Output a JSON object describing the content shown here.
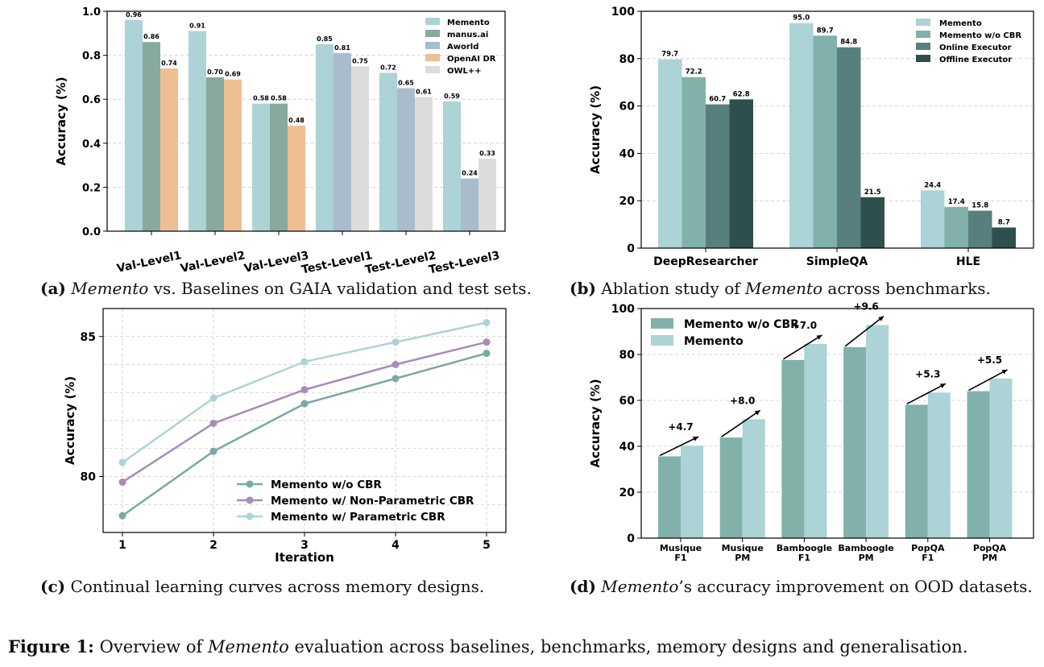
{
  "colors": {
    "memento": "#acd3d5",
    "manus": "#88a99e",
    "aworld": "#a9bccd",
    "openai": "#edbf93",
    "owl": "#dcdcdc",
    "wocbr": "#82b0ab",
    "online": "#577f7d",
    "offline": "#2f4f4c",
    "line_wocbr": "#7aa9a4",
    "line_nonparam": "#a98ab8",
    "line_param": "#acd3d5",
    "grid": "#c9c9c9"
  },
  "chart_data": [
    {
      "id": "a",
      "type": "bar",
      "title": "",
      "xlabel": "",
      "ylabel": "Accuracy (%)",
      "ylim": [
        0,
        1.0
      ],
      "yticks": [
        "0.0",
        "0.2",
        "0.4",
        "0.6",
        "0.8",
        "1.0"
      ],
      "grid": true,
      "legend_position": "top-right",
      "categories": [
        "Val-Level1",
        "Val-Level2",
        "Val-Level3",
        "Test-Level1",
        "Test-Level2",
        "Test-Level3"
      ],
      "series": [
        {
          "name": "Memento",
          "color": "#acd3d5",
          "values": [
            0.96,
            0.91,
            0.58,
            0.85,
            0.72,
            0.59
          ]
        },
        {
          "name": "manus.ai",
          "color": "#88a99e",
          "values": [
            0.86,
            0.7,
            0.58,
            null,
            null,
            null
          ]
        },
        {
          "name": "Aworld",
          "color": "#a9bccd",
          "values": [
            null,
            null,
            null,
            0.81,
            0.65,
            0.24
          ]
        },
        {
          "name": "OpenAI DR",
          "color": "#edbf93",
          "values": [
            0.74,
            0.69,
            0.48,
            null,
            null,
            null
          ]
        },
        {
          "name": "OWL++",
          "color": "#dcdcdc",
          "values": [
            null,
            null,
            null,
            0.75,
            0.61,
            0.33
          ]
        }
      ]
    },
    {
      "id": "b",
      "type": "bar",
      "title": "",
      "xlabel": "",
      "ylabel": "Accuracy (%)",
      "ylim": [
        0,
        100
      ],
      "yticks": [
        "0",
        "20",
        "40",
        "60",
        "80",
        "100"
      ],
      "grid": true,
      "legend_position": "top-right",
      "categories": [
        "DeepResearcher",
        "SimpleQA",
        "HLE"
      ],
      "series": [
        {
          "name": "Memento",
          "color": "#acd3d5",
          "values": [
            79.7,
            95.0,
            24.4
          ]
        },
        {
          "name": "Memento w/o CBR",
          "color": "#82b0ab",
          "values": [
            72.2,
            89.7,
            17.4
          ]
        },
        {
          "name": "Online Executor",
          "color": "#577f7d",
          "values": [
            60.7,
            84.8,
            15.8
          ]
        },
        {
          "name": "Offline Executor",
          "color": "#2f4f4c",
          "values": [
            62.8,
            21.5,
            8.7
          ]
        }
      ]
    },
    {
      "id": "c",
      "type": "line",
      "title": "",
      "xlabel": "Iteration",
      "ylabel": "Accuracy (%)",
      "ylim": [
        78,
        86
      ],
      "x": [
        1,
        2,
        3,
        4,
        5
      ],
      "xticks": [
        "1",
        "2",
        "3",
        "4",
        "5"
      ],
      "yticks": [
        "80",
        "85"
      ],
      "grid": true,
      "legend_position": "bottom-right",
      "series": [
        {
          "name": "Memento w/o CBR",
          "color": "#7aa9a4",
          "values": [
            78.6,
            80.9,
            82.6,
            83.5,
            84.4
          ]
        },
        {
          "name": "Memento w/ Non-Parametric CBR",
          "color": "#a98ab8",
          "values": [
            79.8,
            81.9,
            83.1,
            84.0,
            84.8
          ]
        },
        {
          "name": "Memento w/ Parametric CBR",
          "color": "#acd3d5",
          "values": [
            80.5,
            82.8,
            84.1,
            84.8,
            85.5
          ]
        }
      ]
    },
    {
      "id": "d",
      "type": "bar",
      "title": "",
      "xlabel": "",
      "ylabel": "Accuracy (%)",
      "ylim": [
        0,
        100
      ],
      "yticks": [
        "0",
        "20",
        "40",
        "60",
        "80",
        "100"
      ],
      "grid": true,
      "legend_position": "top-left",
      "categories": [
        "Musique\nF1",
        "Musique\nPM",
        "Bamboogle\nF1",
        "Bamboogle\nPM",
        "PopQA\nF1",
        "PopQA\nPM"
      ],
      "series": [
        {
          "name": "Memento w/o CBR",
          "color": "#82b0ab",
          "values": [
            35.6,
            43.8,
            77.6,
            83.2,
            58.1,
            64.0
          ]
        },
        {
          "name": "Memento",
          "color": "#acd3d5",
          "values": [
            40.3,
            51.8,
            84.6,
            92.8,
            63.4,
            69.5
          ]
        }
      ],
      "annotations": [
        "+4.7",
        "+8.0",
        "+7.0",
        "+9.6",
        "+5.3",
        "+5.5"
      ]
    }
  ],
  "captions": {
    "a": {
      "label": "(a)",
      "em": "Memento",
      "rest": " vs. Baselines on GAIA validation and test sets."
    },
    "b": {
      "label": "(b)",
      "pre": " Ablation study of ",
      "em": "Memento",
      "rest": " across benchmarks."
    },
    "c": {
      "label": "(c)",
      "rest": " Continual learning curves across memory designs."
    },
    "d": {
      "label": "(d)",
      "em": "Memento",
      "rest": "’s accuracy improvement on OOD datasets."
    },
    "figure": {
      "label": "Figure 1:",
      "pre": " Overview of ",
      "em": "Memento",
      "rest": " evaluation across baselines, benchmarks, memory designs and generalisation."
    }
  }
}
